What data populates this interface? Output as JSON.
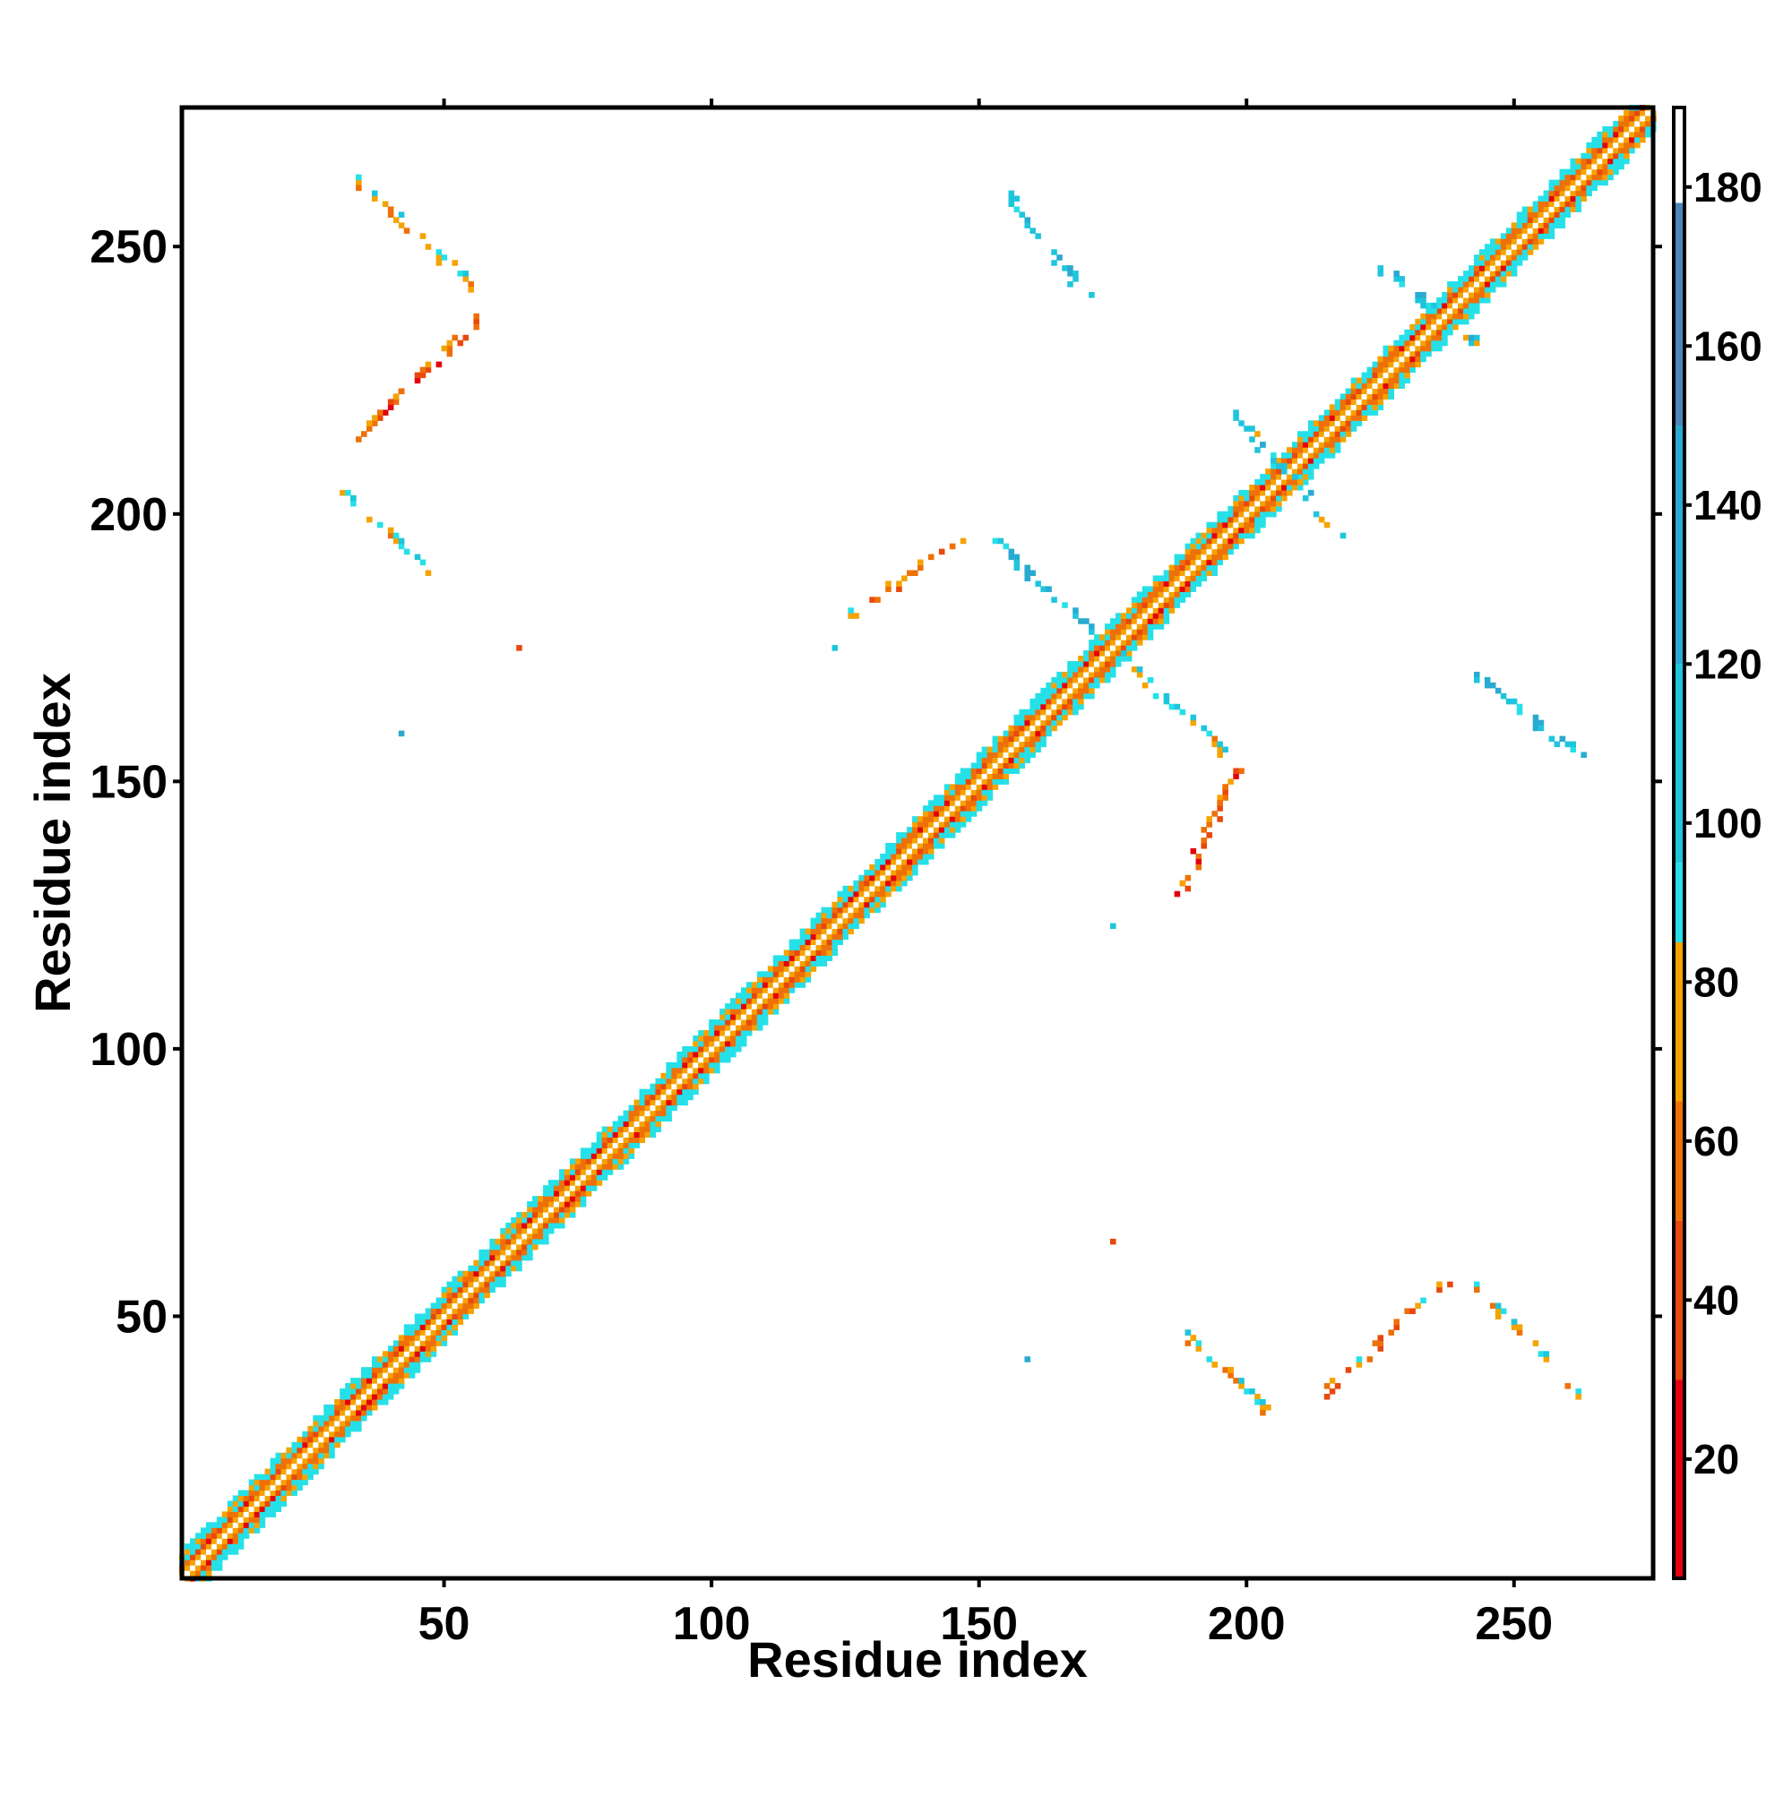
{
  "chart_data": {
    "type": "heatmap",
    "title": "",
    "xlabel": "Residue index",
    "ylabel": "Residue index",
    "xlim": [
      1,
      276
    ],
    "ylim": [
      1,
      276
    ],
    "xticks": [
      50,
      100,
      150,
      200,
      250
    ],
    "yticks": [
      50,
      100,
      150,
      200,
      250
    ],
    "colorbar": {
      "range": [
        5,
        190
      ],
      "ticks": [
        20,
        40,
        60,
        80,
        100,
        120,
        140,
        160,
        180
      ],
      "bands": [
        {
          "from": 5,
          "to": 30,
          "color": "#e3000f"
        },
        {
          "from": 30,
          "to": 50,
          "color": "#e8480d"
        },
        {
          "from": 50,
          "to": 65,
          "color": "#ee7008"
        },
        {
          "from": 65,
          "to": 85,
          "color": "#f5a300"
        },
        {
          "from": 85,
          "to": 95,
          "color": "#26e0e8"
        },
        {
          "from": 95,
          "to": 120,
          "color": "#1ec5dd"
        },
        {
          "from": 120,
          "to": 150,
          "color": "#2aaad0"
        },
        {
          "from": 150,
          "to": 178,
          "color": "#4c86b8"
        },
        {
          "from": 178,
          "to": 190,
          "color": "#ffffff"
        }
      ]
    },
    "diagonal_band": {
      "halfwidth": 5
    },
    "off_diagonal_contacts": [
      {
        "x": [
          34,
          56
        ],
        "y": [
          262,
          242
        ],
        "value": 70
      },
      {
        "x": [
          56,
          34
        ],
        "y": [
          236,
          214
        ],
        "value": 45
      },
      {
        "x": [
          31,
          47
        ],
        "y": [
          204,
          189
        ],
        "value": 75
      },
      {
        "x": [
          155,
          170
        ],
        "y": [
          260,
          241
        ],
        "value": 105
      },
      {
        "x": [
          153,
          173
        ],
        "y": [
          195,
          176
        ],
        "value": 110
      },
      {
        "x": [
          177,
          196
        ],
        "y": [
          173,
          155
        ],
        "value": 80
      },
      {
        "x": [
          198,
          187
        ],
        "y": [
          152,
          128
        ],
        "value": 45
      },
      {
        "x": [
          125,
          146
        ],
        "y": [
          180,
          195
        ],
        "value": 55
      },
      {
        "x": [
          242,
          262
        ],
        "y": [
          170,
          155
        ],
        "value": 110
      },
      {
        "x": [
          188,
          204
        ],
        "y": [
          47,
          32
        ],
        "value": 75
      },
      {
        "x": [
          213,
          237
        ],
        "y": [
          34,
          56
        ],
        "value": 50
      },
      {
        "x": [
          242,
          263
        ],
        "y": [
          56,
          35
        ],
        "value": 70
      },
      {
        "x": [
          198,
          218
        ],
        "y": [
          218,
          196
        ],
        "value": 95
      },
      {
        "x": [
          225,
          245
        ],
        "y": [
          246,
          230
        ],
        "value": 100
      }
    ],
    "isolated_points": [
      {
        "x": 64,
        "y": 175,
        "value": 40
      },
      {
        "x": 42,
        "y": 159,
        "value": 140
      },
      {
        "x": 175,
        "y": 64,
        "value": 40
      },
      {
        "x": 159,
        "y": 42,
        "value": 140
      },
      {
        "x": 123,
        "y": 175,
        "value": 95
      },
      {
        "x": 175,
        "y": 123,
        "value": 95
      }
    ]
  }
}
